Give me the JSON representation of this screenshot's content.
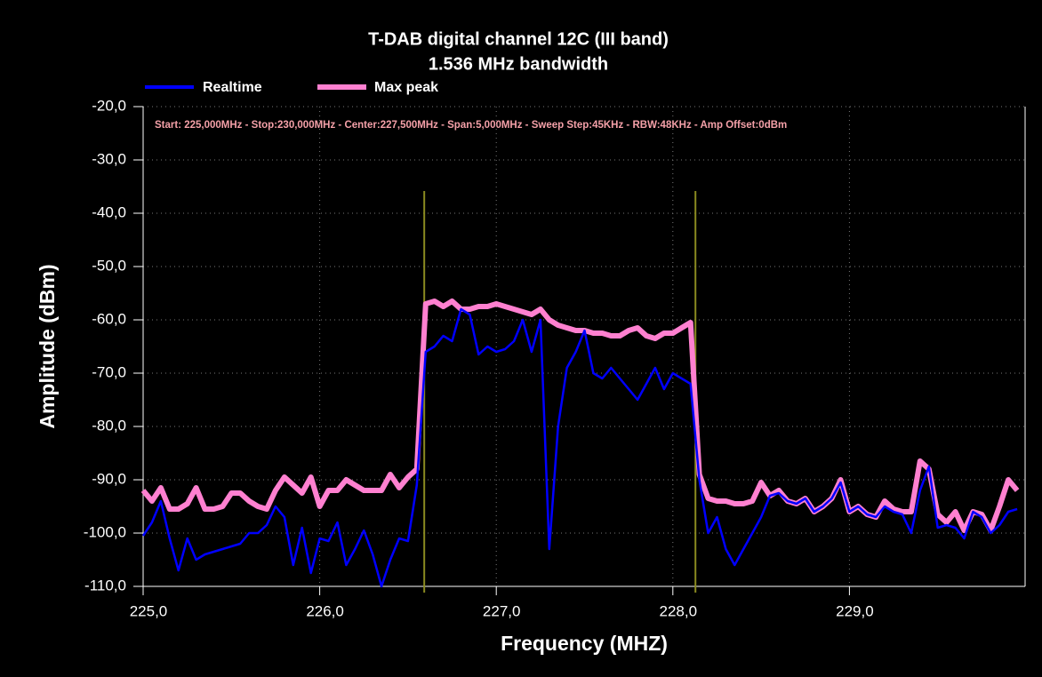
{
  "chart_data": {
    "type": "line",
    "title": "T-DAB digital channel 12C (III band)",
    "subtitle": "1.536 MHz bandwidth",
    "info": "Start: 225,000MHz - Stop:230,000MHz - Center:227,500MHz - Span:5,000MHz - Sweep Step:45KHz - RBW:48KHz - Amp Offset:0dBm",
    "xlabel": "Frequency (MHZ)",
    "ylabel": "Amplitude (dBm)",
    "xlim": [
      225,
      230
    ],
    "ylim": [
      -110,
      -20
    ],
    "xticks": [
      {
        "value": 225,
        "label": "225,0"
      },
      {
        "value": 226,
        "label": "226,0"
      },
      {
        "value": 227,
        "label": "227,0"
      },
      {
        "value": 228,
        "label": "228,0"
      },
      {
        "value": 229,
        "label": "229,0"
      }
    ],
    "yticks": [
      {
        "value": -20,
        "label": "-20,0"
      },
      {
        "value": -30,
        "label": "-30,0"
      },
      {
        "value": -40,
        "label": "-40,0"
      },
      {
        "value": -50,
        "label": "-50,0"
      },
      {
        "value": -60,
        "label": "-60,0"
      },
      {
        "value": -70,
        "label": "-70,0"
      },
      {
        "value": -80,
        "label": "-80,0"
      },
      {
        "value": -90,
        "label": "-90,0"
      },
      {
        "value": -100,
        "label": "-100,0"
      },
      {
        "value": -110,
        "label": "-110,0"
      }
    ],
    "grid": true,
    "markers": [
      226.592,
      228.128
    ],
    "marker_color": "#8a8a20",
    "x": [
      225.0,
      225.05,
      225.1,
      225.15,
      225.2,
      225.25,
      225.3,
      225.35,
      225.4,
      225.45,
      225.5,
      225.55,
      225.6,
      225.65,
      225.7,
      225.75,
      225.8,
      225.85,
      225.9,
      225.95,
      226.0,
      226.05,
      226.1,
      226.15,
      226.2,
      226.25,
      226.3,
      226.35,
      226.4,
      226.45,
      226.5,
      226.55,
      226.6,
      226.65,
      226.7,
      226.75,
      226.8,
      226.85,
      226.9,
      226.95,
      227.0,
      227.05,
      227.1,
      227.15,
      227.2,
      227.25,
      227.3,
      227.35,
      227.4,
      227.45,
      227.5,
      227.55,
      227.6,
      227.65,
      227.7,
      227.75,
      227.8,
      227.85,
      227.9,
      227.95,
      228.0,
      228.05,
      228.1,
      228.15,
      228.2,
      228.25,
      228.3,
      228.35,
      228.4,
      228.45,
      228.5,
      228.55,
      228.6,
      228.65,
      228.7,
      228.75,
      228.8,
      228.85,
      228.9,
      228.95,
      229.0,
      229.05,
      229.1,
      229.15,
      229.2,
      229.25,
      229.3,
      229.35,
      229.4,
      229.45,
      229.5,
      229.55,
      229.6,
      229.65,
      229.7,
      229.75,
      229.8,
      229.85,
      229.9,
      229.95
    ],
    "series": [
      {
        "name": "Max peak",
        "color": "#ff80d0",
        "values": [
          -92,
          -94,
          -91.5,
          -95.5,
          -95.5,
          -94.5,
          -91.5,
          -95.5,
          -95.5,
          -95,
          -92.5,
          -92.5,
          -94,
          -95,
          -95.5,
          -92,
          -89.5,
          -91,
          -92.5,
          -89.5,
          -95,
          -92,
          -92,
          -90,
          -91,
          -92,
          -92,
          -92,
          -89,
          -91.5,
          -89.5,
          -88,
          -57,
          -56.5,
          -57.5,
          -56.5,
          -58,
          -58,
          -57.5,
          -57.5,
          -57,
          -57.5,
          -58,
          -58.5,
          -59,
          -58,
          -60,
          -61,
          -61.5,
          -62,
          -62,
          -62.5,
          -62.5,
          -63,
          -63,
          -62,
          -61.5,
          -63,
          -63.5,
          -62.5,
          -62.5,
          -61.5,
          -60.5,
          -89,
          -93.5,
          -94,
          -94,
          -94.5,
          -94.5,
          -94,
          -90.5,
          -93,
          -92,
          -94,
          -94.5,
          -93.5,
          -96,
          -95,
          -93.5,
          -90,
          -96,
          -95,
          -96.5,
          -97,
          -94,
          -95.5,
          -96,
          -96,
          -86.5,
          -88,
          -96.5,
          -98,
          -96,
          -99.5,
          -96,
          -96.5,
          -99.5,
          -95,
          -90,
          -92
        ]
      },
      {
        "name": "Realtime",
        "color": "#0000ff",
        "values": [
          -100.5,
          -98,
          -94,
          -101,
          -107,
          -101,
          -105,
          -104,
          -103.5,
          -103,
          -102.5,
          -102,
          -100,
          -100,
          -98.5,
          -95,
          -97,
          -106,
          -99,
          -107.5,
          -101,
          -101.5,
          -98,
          -106,
          -103,
          -99.5,
          -104,
          -110,
          -105,
          -101,
          -101.5,
          -91,
          -66,
          -65,
          -63,
          -64,
          -58,
          -59,
          -66.5,
          -65,
          -66,
          -65.5,
          -64,
          -60,
          -66,
          -60,
          -103,
          -80,
          -69,
          -66,
          -62,
          -70,
          -71,
          -69,
          -71,
          -73,
          -75,
          -72,
          -69,
          -73,
          -70,
          -71,
          -72,
          -90,
          -100,
          -97,
          -103,
          -106,
          -103,
          -100,
          -97,
          -93,
          -92.5,
          -94,
          -94.5,
          -93.5,
          -96,
          -95,
          -93.5,
          -90.5,
          -96,
          -95,
          -96.5,
          -97,
          -95,
          -96,
          -96.5,
          -100,
          -92,
          -87.5,
          -99,
          -98.5,
          -99,
          -101,
          -96,
          -97,
          -100,
          -98.5,
          -96,
          -95.5
        ]
      }
    ]
  }
}
